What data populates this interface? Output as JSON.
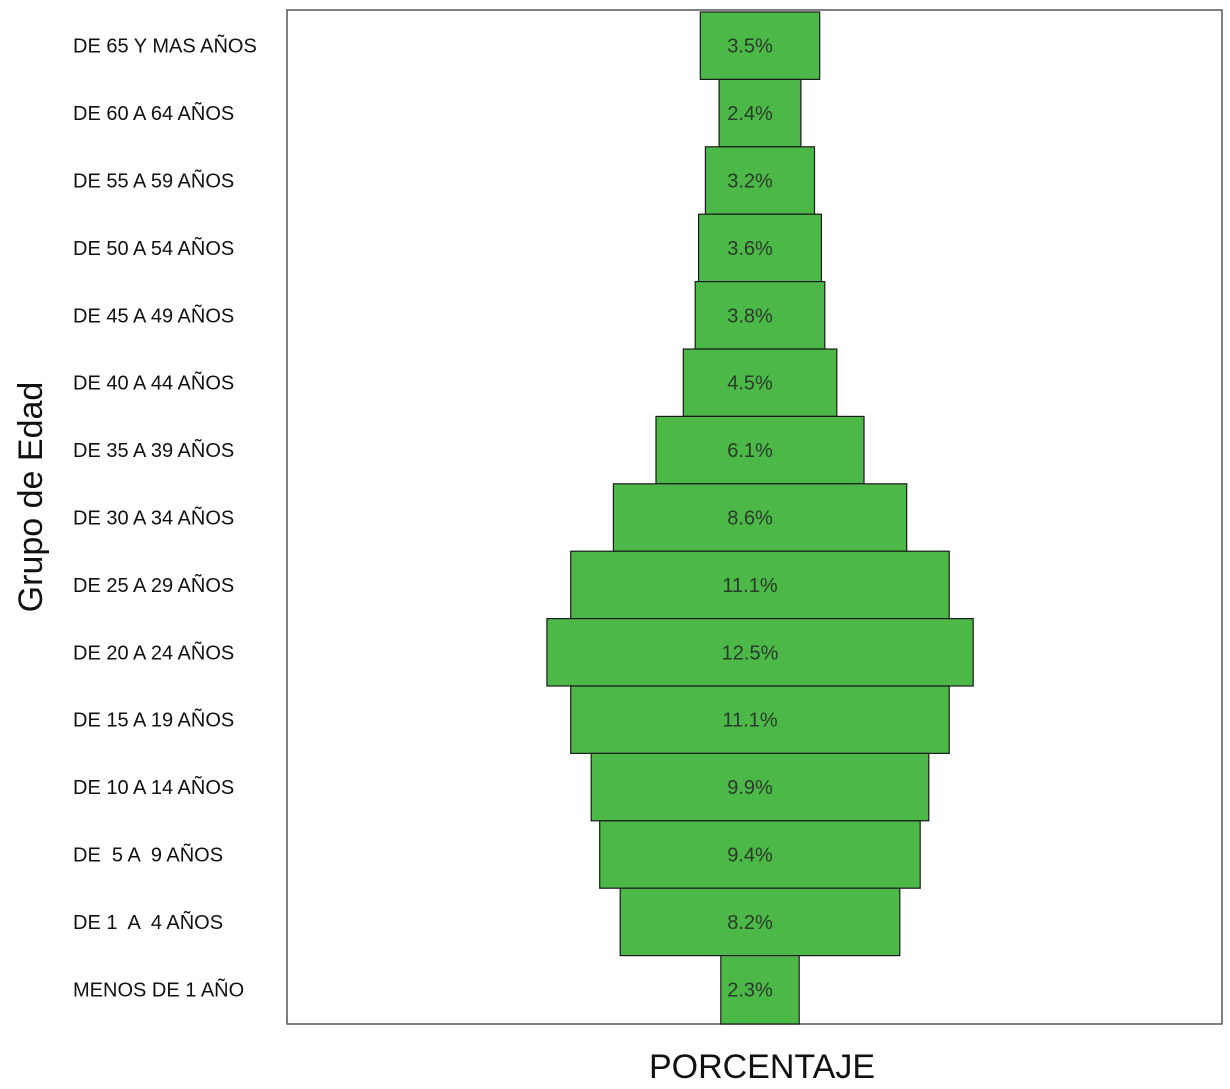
{
  "chart_data": {
    "type": "bar",
    "orientation": "horizontal-centered",
    "title": "",
    "xlabel": "PORCENTAJE",
    "ylabel": "Grupo de Edad",
    "categories": [
      "DE 65 Y MAS AÑOS",
      "DE 60 A 64 AÑOS",
      "DE 55 A 59 AÑOS",
      "DE 50 A 54 AÑOS",
      "DE 45 A 49 AÑOS",
      "DE 40 A 44 AÑOS",
      "DE 35 A 39 AÑOS",
      "DE 30 A 34 AÑOS",
      "DE 25 A 29 AÑOS",
      "DE 20 A 24 AÑOS",
      "DE 15 A 19 AÑOS",
      "DE 10 A 14 AÑOS",
      "DE  5 A  9 AÑOS",
      "DE 1  A  4 AÑOS",
      "MENOS DE 1 AÑO"
    ],
    "values": [
      3.5,
      2.4,
      3.2,
      3.6,
      3.8,
      4.5,
      6.1,
      8.6,
      11.1,
      12.5,
      11.1,
      9.9,
      9.4,
      8.2,
      2.3
    ],
    "value_labels": [
      "3.5%",
      "2.4%",
      "3.2%",
      "3.6%",
      "3.8%",
      "4.5%",
      "6.1%",
      "8.6%",
      "11.1%",
      "12.5%",
      "11.1%",
      "9.9%",
      "9.4%",
      "8.2%",
      "2.3%"
    ],
    "bar_color": "#4cb848",
    "grid": false,
    "legend": "none"
  }
}
